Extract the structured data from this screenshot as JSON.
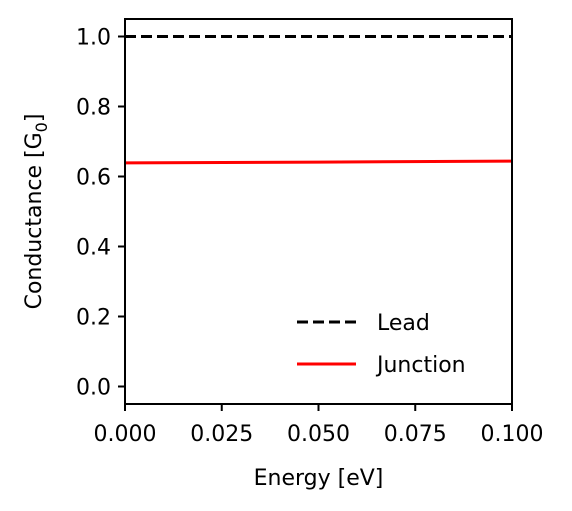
{
  "chart_data": {
    "type": "line",
    "xlabel": "Energy [eV]",
    "ylabel_main": "Conductance [G",
    "ylabel_sub": "0",
    "ylabel_close": "]",
    "xlim": [
      0.0,
      0.1
    ],
    "ylim": [
      -0.05,
      1.05
    ],
    "xticks": [
      0.0,
      0.025,
      0.05,
      0.075,
      0.1
    ],
    "xtick_labels": [
      "0.000",
      "0.025",
      "0.050",
      "0.075",
      "0.100"
    ],
    "yticks": [
      0.0,
      0.2,
      0.4,
      0.6,
      0.8,
      1.0
    ],
    "ytick_labels": [
      "0.0",
      "0.2",
      "0.4",
      "0.6",
      "0.8",
      "1.0"
    ],
    "grid": false,
    "legend_position": "lower-right",
    "series": [
      {
        "name": "Lead",
        "x": [
          0.0,
          0.1
        ],
        "y": [
          1.0,
          1.0
        ],
        "color": "#000000",
        "style": "dashed"
      },
      {
        "name": "Junction",
        "x": [
          0.0,
          0.05,
          0.1
        ],
        "y": [
          0.639,
          0.641,
          0.644
        ],
        "color": "#ff0000",
        "style": "solid"
      }
    ]
  }
}
